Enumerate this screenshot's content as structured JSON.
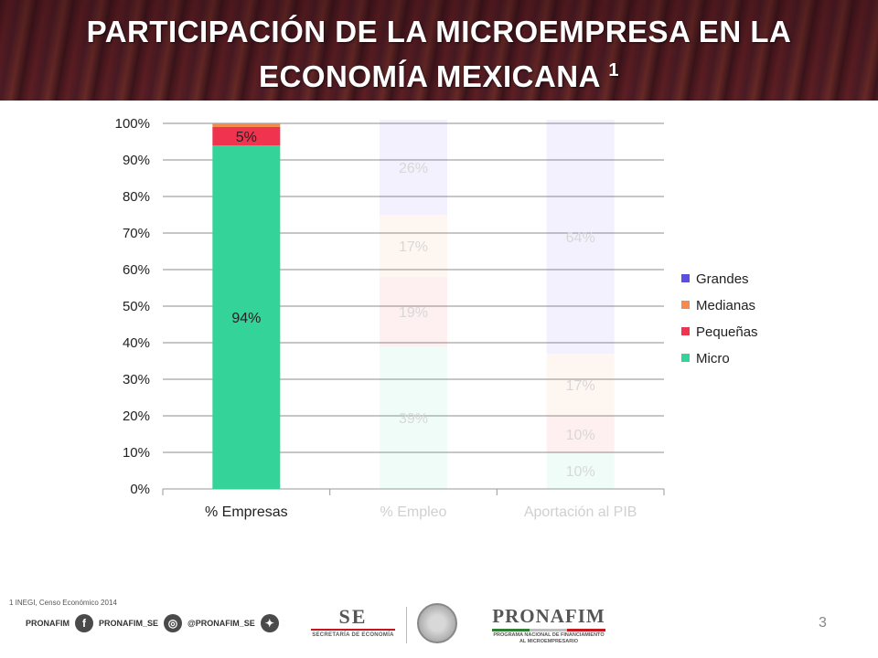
{
  "header": {
    "title_line1": "PARTICIPACIÓN DE LA MICROEMPRESA EN LA",
    "title_line2": "ECONOMÍA MEXICANA",
    "title_sup": "1"
  },
  "chart_data": {
    "type": "bar",
    "stacked": true,
    "categories": [
      "% Empresas",
      "% Empleo",
      "Aportación al PIB"
    ],
    "series": [
      {
        "name": "Micro",
        "color": "#34d399",
        "values": [
          94,
          39,
          10
        ],
        "labels": [
          "94%",
          "39%",
          "10%"
        ]
      },
      {
        "name": "Pequeñas",
        "color": "#f0334f",
        "values": [
          5,
          19,
          10
        ],
        "labels": [
          "5%",
          "19%",
          "10%"
        ]
      },
      {
        "name": "Medianas",
        "color": "#f58a4b",
        "values": [
          1,
          17,
          17
        ],
        "labels": [
          "",
          "17%",
          "17%"
        ]
      },
      {
        "name": "Grandes",
        "color": "#5b4fe0",
        "values": [
          0,
          26,
          64
        ],
        "labels": [
          "",
          "26%",
          "64%"
        ]
      }
    ],
    "highlighted_category": 0,
    "ylim": [
      0,
      100
    ],
    "yticks": [
      "0%",
      "10%",
      "20%",
      "30%",
      "40%",
      "50%",
      "60%",
      "70%",
      "80%",
      "90%",
      "100%"
    ],
    "legend_order": [
      "Grandes",
      "Medianas",
      "Pequeñas",
      "Micro"
    ],
    "legend_position": "right",
    "grid": true
  },
  "footer": {
    "footnote": "1 INEGI, Censo Económico 2014",
    "social": [
      {
        "icon": "facebook-icon",
        "glyph": "f",
        "handle": "PRONAFIM"
      },
      {
        "icon": "instagram-icon",
        "glyph": "◎",
        "handle": "PRONAFIM_SE"
      },
      {
        "icon": "twitter-icon",
        "glyph": "✦",
        "handle": "@PRONAFIM_SE"
      }
    ],
    "logo_se_big": "SE",
    "logo_se_small": "SECRETARÍA DE ECONOMÍA",
    "logo_pronafim_big": "PRONAFIM",
    "logo_pronafim_small": "PROGRAMA NACIONAL DE FINANCIAMIENTO AL MICROEMPRESARIO",
    "page_number": "3"
  }
}
